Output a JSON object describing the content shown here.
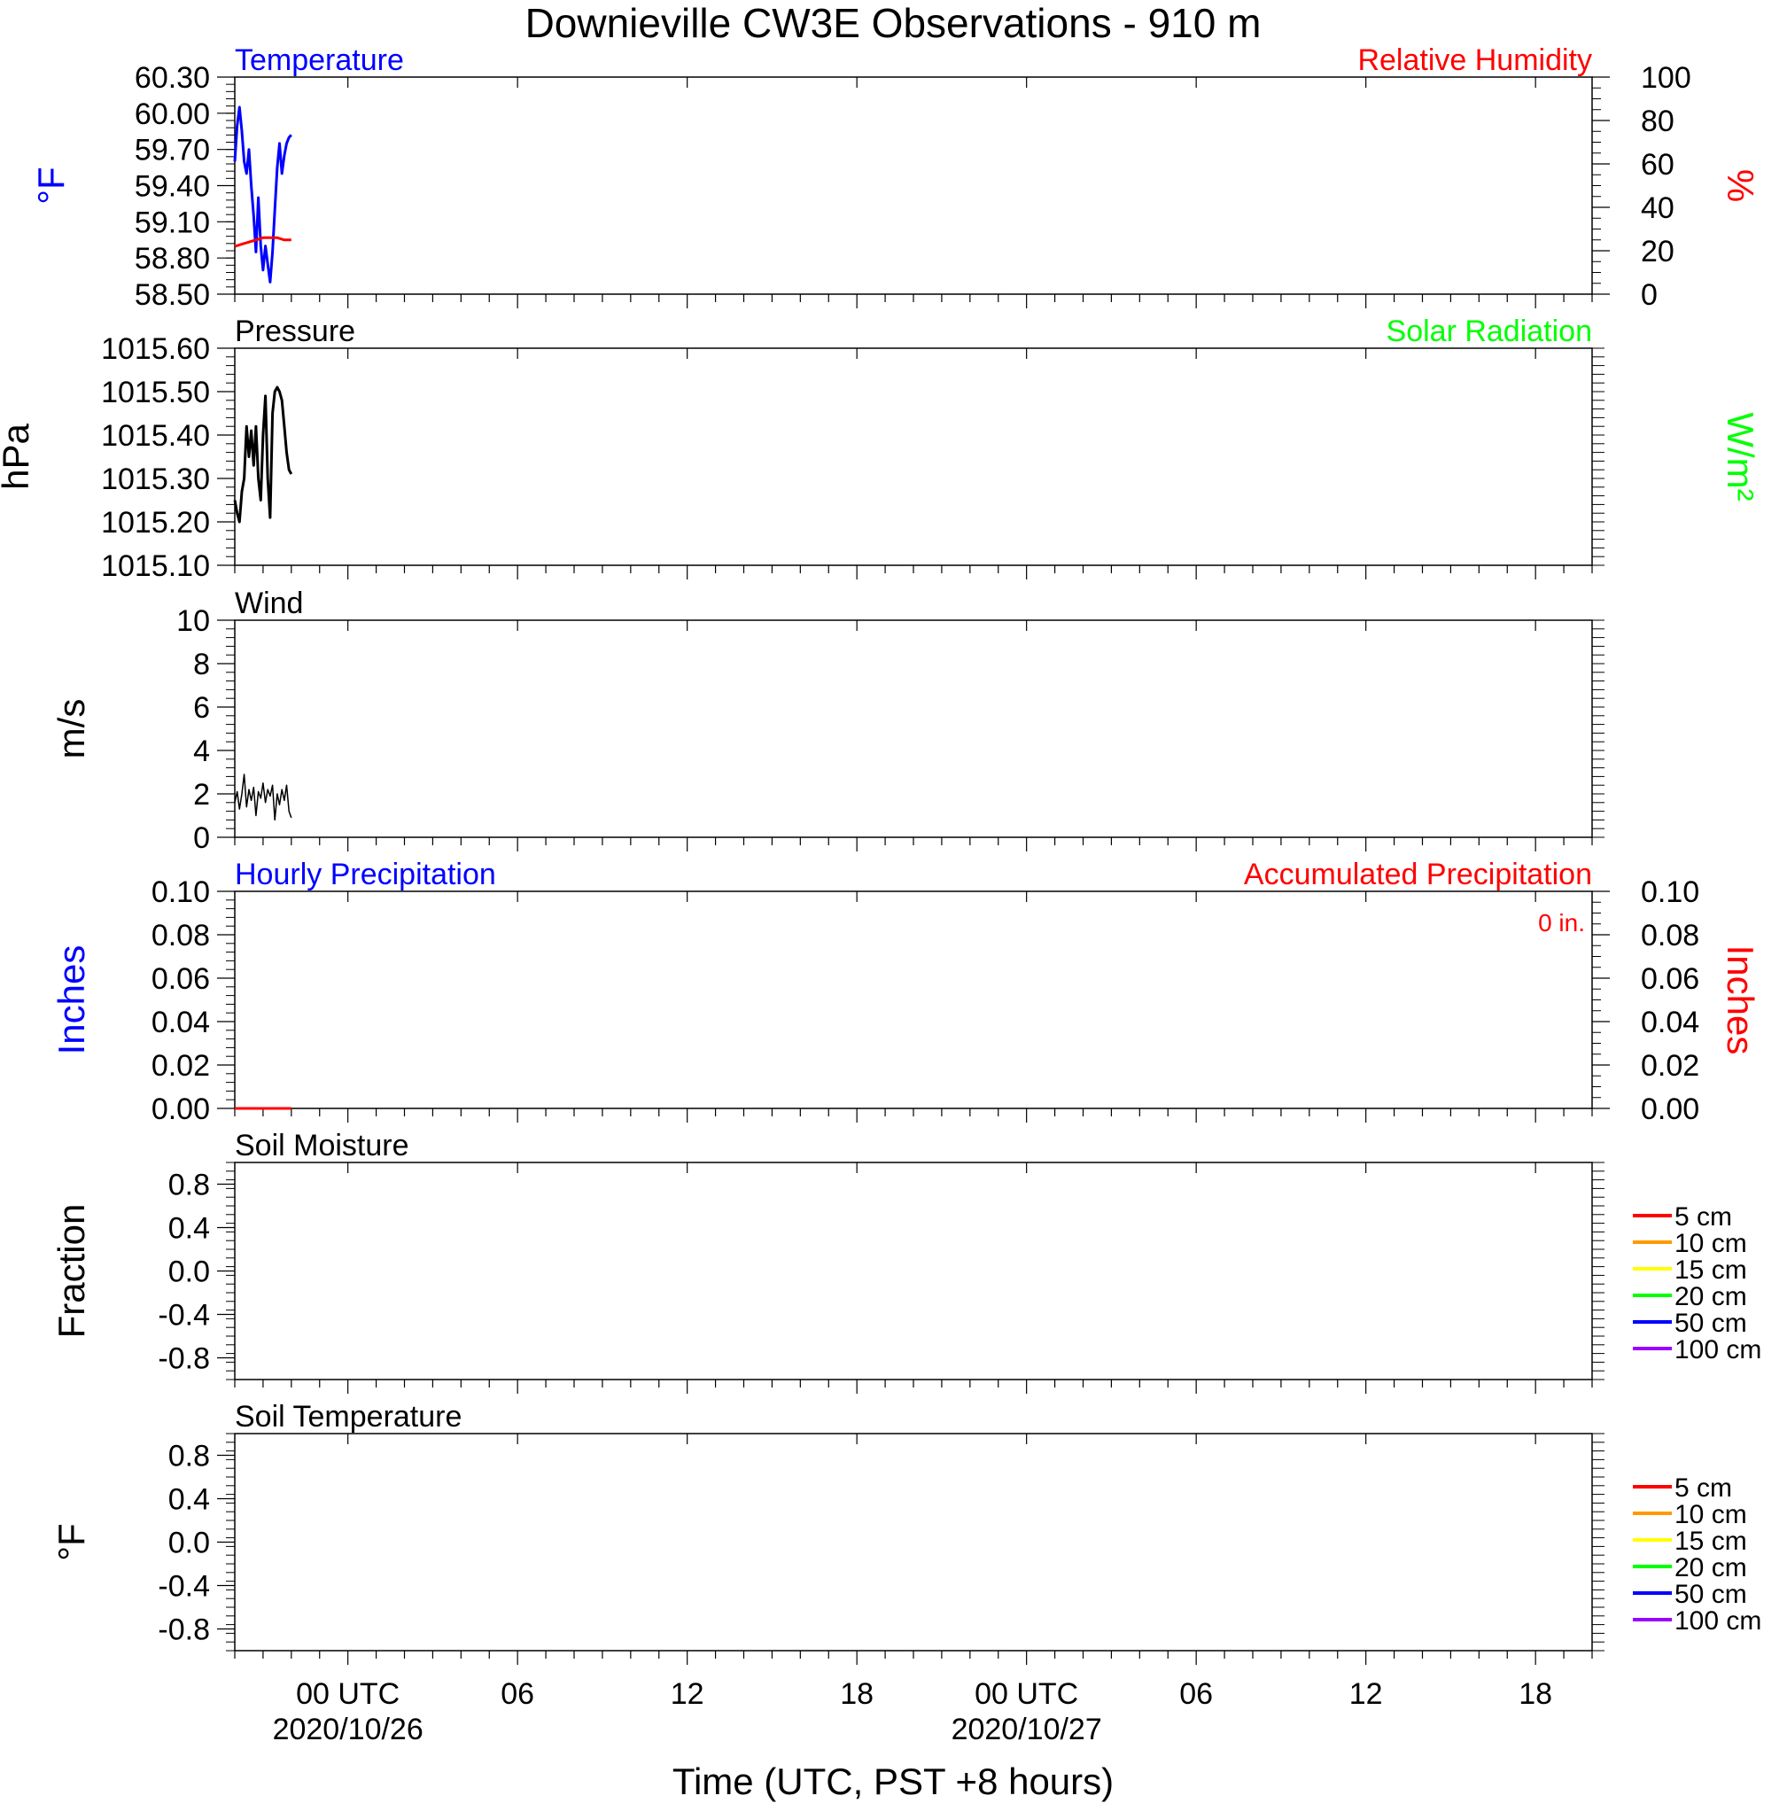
{
  "chart_data": {
    "type": "line",
    "title": "Downieville CW3E Observations - 910 m",
    "xlabel": "Time (UTC, PST +8 hours)",
    "x_range": [
      "2020-10-25T20:00Z",
      "2020-10-27T20:00Z"
    ],
    "x_major_ticks": [
      {
        "t": "2020-10-26T00:00Z",
        "label": "00 UTC",
        "sublabel": "2020/10/26"
      },
      {
        "t": "2020-10-26T06:00Z",
        "label": "06",
        "sublabel": ""
      },
      {
        "t": "2020-10-26T12:00Z",
        "label": "12",
        "sublabel": ""
      },
      {
        "t": "2020-10-26T18:00Z",
        "label": "18",
        "sublabel": ""
      },
      {
        "t": "2020-10-27T00:00Z",
        "label": "00 UTC",
        "sublabel": "2020/10/27"
      },
      {
        "t": "2020-10-27T06:00Z",
        "label": "06",
        "sublabel": ""
      },
      {
        "t": "2020-10-27T12:00Z",
        "label": "12",
        "sublabel": ""
      },
      {
        "t": "2020-10-27T18:00Z",
        "label": "18",
        "sublabel": ""
      }
    ],
    "panels": [
      {
        "id": "temperature",
        "title_left": "Temperature",
        "title_left_color": "#0000ff",
        "title_right": "Relative Humidity",
        "title_right_color": "#ff0000",
        "ylabel_left": "°F",
        "ylabel_left_color": "#0000ff",
        "ylabel_right": "%",
        "ylabel_right_color": "#ff0000",
        "ylim_left": [
          58.5,
          60.3
        ],
        "yticks_left": [
          "58.50",
          "58.80",
          "59.10",
          "59.40",
          "59.70",
          "60.00",
          "60.30"
        ],
        "ylim_right": [
          0,
          100
        ],
        "yticks_right": [
          "0",
          "20",
          "40",
          "60",
          "80",
          "100"
        ],
        "series": [
          {
            "axis": "left",
            "color": "#0000ff",
            "stroke": 3,
            "x": [
              "2020-10-25T20:00Z",
              "2020-10-25T20:05Z",
              "2020-10-25T20:10Z",
              "2020-10-25T20:15Z",
              "2020-10-25T20:20Z",
              "2020-10-25T20:25Z",
              "2020-10-25T20:30Z",
              "2020-10-25T20:35Z",
              "2020-10-25T20:40Z",
              "2020-10-25T20:45Z",
              "2020-10-25T20:50Z",
              "2020-10-25T20:55Z",
              "2020-10-25T21:00Z",
              "2020-10-25T21:05Z",
              "2020-10-25T21:10Z",
              "2020-10-25T21:15Z",
              "2020-10-25T21:20Z",
              "2020-10-25T21:25Z",
              "2020-10-25T21:30Z",
              "2020-10-25T21:35Z",
              "2020-10-25T21:40Z",
              "2020-10-25T21:45Z",
              "2020-10-25T21:50Z",
              "2020-10-25T21:55Z",
              "2020-10-25T22:00Z"
            ],
            "y": [
              59.6,
              59.9,
              60.05,
              59.85,
              59.6,
              59.5,
              59.7,
              59.4,
              59.15,
              58.85,
              59.3,
              58.9,
              58.7,
              58.9,
              58.75,
              58.6,
              58.85,
              59.2,
              59.55,
              59.75,
              59.5,
              59.65,
              59.75,
              59.8,
              59.82
            ]
          },
          {
            "axis": "right",
            "color": "#ff0000",
            "stroke": 3,
            "x": [
              "2020-10-25T20:00Z",
              "2020-10-25T20:15Z",
              "2020-10-25T20:30Z",
              "2020-10-25T20:45Z",
              "2020-10-25T21:00Z",
              "2020-10-25T21:15Z",
              "2020-10-25T21:30Z",
              "2020-10-25T21:45Z",
              "2020-10-25T22:00Z"
            ],
            "y": [
              22,
              23,
              24,
              25,
              26,
              26,
              26,
              25,
              25
            ]
          }
        ]
      },
      {
        "id": "pressure",
        "title_left": "Pressure",
        "title_left_color": "#000000",
        "title_right": "Solar Radiation",
        "title_right_color": "#00ff00",
        "ylabel_left": "hPa",
        "ylabel_left_color": "#000000",
        "ylabel_right": "W/m²",
        "ylabel_right_color": "#00ff00",
        "ylim_left": [
          1015.1,
          1015.6
        ],
        "yticks_left": [
          "1015.10",
          "1015.20",
          "1015.30",
          "1015.40",
          "1015.50",
          "1015.60"
        ],
        "ylim_right": null,
        "yticks_right": [],
        "series": [
          {
            "axis": "left",
            "color": "#000000",
            "stroke": 3,
            "x": [
              "2020-10-25T20:00Z",
              "2020-10-25T20:05Z",
              "2020-10-25T20:10Z",
              "2020-10-25T20:15Z",
              "2020-10-25T20:20Z",
              "2020-10-25T20:25Z",
              "2020-10-25T20:30Z",
              "2020-10-25T20:35Z",
              "2020-10-25T20:40Z",
              "2020-10-25T20:45Z",
              "2020-10-25T20:50Z",
              "2020-10-25T20:55Z",
              "2020-10-25T21:00Z",
              "2020-10-25T21:05Z",
              "2020-10-25T21:10Z",
              "2020-10-25T21:15Z",
              "2020-10-25T21:20Z",
              "2020-10-25T21:25Z",
              "2020-10-25T21:30Z",
              "2020-10-25T21:35Z",
              "2020-10-25T21:40Z",
              "2020-10-25T21:45Z",
              "2020-10-25T21:50Z",
              "2020-10-25T21:55Z",
              "2020-10-25T22:00Z"
            ],
            "y": [
              1015.25,
              1015.22,
              1015.2,
              1015.27,
              1015.3,
              1015.42,
              1015.35,
              1015.41,
              1015.33,
              1015.42,
              1015.3,
              1015.25,
              1015.4,
              1015.49,
              1015.3,
              1015.21,
              1015.45,
              1015.5,
              1015.51,
              1015.5,
              1015.48,
              1015.42,
              1015.36,
              1015.32,
              1015.31
            ]
          }
        ]
      },
      {
        "id": "wind",
        "title_left": "Wind",
        "title_left_color": "#000000",
        "title_right": "",
        "title_right_color": "#000000",
        "ylabel_left": "m/s",
        "ylabel_left_color": "#000000",
        "ylabel_right": "",
        "ylabel_right_color": "#000000",
        "ylim_left": [
          0,
          10
        ],
        "yticks_left": [
          "0",
          "2",
          "4",
          "6",
          "8",
          "10"
        ],
        "ylim_right": null,
        "yticks_right": [],
        "series": [
          {
            "axis": "left",
            "color": "#000000",
            "stroke": 1.5,
            "x": [
              "2020-10-25T20:00Z",
              "2020-10-25T20:05Z",
              "2020-10-25T20:10Z",
              "2020-10-25T20:15Z",
              "2020-10-25T20:20Z",
              "2020-10-25T20:25Z",
              "2020-10-25T20:30Z",
              "2020-10-25T20:35Z",
              "2020-10-25T20:40Z",
              "2020-10-25T20:45Z",
              "2020-10-25T20:50Z",
              "2020-10-25T20:55Z",
              "2020-10-25T21:00Z",
              "2020-10-25T21:05Z",
              "2020-10-25T21:10Z",
              "2020-10-25T21:15Z",
              "2020-10-25T21:20Z",
              "2020-10-25T21:25Z",
              "2020-10-25T21:30Z",
              "2020-10-25T21:35Z",
              "2020-10-25T21:40Z",
              "2020-10-25T21:45Z",
              "2020-10-25T21:50Z",
              "2020-10-25T21:55Z",
              "2020-10-25T22:00Z"
            ],
            "y": [
              1.6,
              2.1,
              1.3,
              2.0,
              2.9,
              1.4,
              2.2,
              1.7,
              2.3,
              1.0,
              2.1,
              1.8,
              2.5,
              1.6,
              2.2,
              1.9,
              2.4,
              0.8,
              2.0,
              1.5,
              2.2,
              1.7,
              2.4,
              1.2,
              0.9
            ]
          }
        ]
      },
      {
        "id": "precipitation",
        "title_left": "Hourly Precipitation",
        "title_left_color": "#0000ff",
        "title_right": "Accumulated Precipitation",
        "title_right_color": "#ff0000",
        "note": "0 in.",
        "note_color": "#ff0000",
        "ylabel_left": "Inches",
        "ylabel_left_color": "#0000ff",
        "ylabel_right": "Inches",
        "ylabel_right_color": "#ff0000",
        "ylim_left": [
          0,
          0.1
        ],
        "yticks_left": [
          "0.00",
          "0.02",
          "0.04",
          "0.06",
          "0.08",
          "0.10"
        ],
        "ylim_right": [
          0,
          0.1
        ],
        "yticks_right": [
          "0.00",
          "0.02",
          "0.04",
          "0.06",
          "0.08",
          "0.10"
        ],
        "series": [
          {
            "axis": "right",
            "color": "#ff0000",
            "stroke": 3,
            "x": [
              "2020-10-25T20:00Z",
              "2020-10-25T22:00Z"
            ],
            "y": [
              0,
              0
            ]
          }
        ]
      },
      {
        "id": "soil-moisture",
        "title_left": "Soil Moisture",
        "title_left_color": "#000000",
        "title_right": "",
        "title_right_color": "#000000",
        "ylabel_left": "Fraction",
        "ylabel_left_color": "#000000",
        "ylabel_right": "",
        "ylabel_right_color": "#000000",
        "ylim_left": [
          -1,
          1
        ],
        "yticks_left": [
          "-0.8",
          "-0.4",
          "0.0",
          "0.4",
          "0.8"
        ],
        "ylim_right": null,
        "yticks_right": [],
        "legend": [
          {
            "label": "5 cm",
            "color": "#ff0000"
          },
          {
            "label": "10 cm",
            "color": "#ff9900"
          },
          {
            "label": "15 cm",
            "color": "#ffff00"
          },
          {
            "label": "20 cm",
            "color": "#00ff00"
          },
          {
            "label": "50 cm",
            "color": "#0000ff"
          },
          {
            "label": "100 cm",
            "color": "#9900ff"
          }
        ],
        "series": []
      },
      {
        "id": "soil-temperature",
        "title_left": "Soil Temperature",
        "title_left_color": "#000000",
        "title_right": "",
        "title_right_color": "#000000",
        "ylabel_left": "°F",
        "ylabel_left_color": "#000000",
        "ylabel_right": "",
        "ylabel_right_color": "#000000",
        "ylim_left": [
          -1,
          1
        ],
        "yticks_left": [
          "-0.8",
          "-0.4",
          "0.0",
          "0.4",
          "0.8"
        ],
        "ylim_right": null,
        "yticks_right": [],
        "legend": [
          {
            "label": "5 cm",
            "color": "#ff0000"
          },
          {
            "label": "10 cm",
            "color": "#ff9900"
          },
          {
            "label": "15 cm",
            "color": "#ffff00"
          },
          {
            "label": "20 cm",
            "color": "#00ff00"
          },
          {
            "label": "50 cm",
            "color": "#0000ff"
          },
          {
            "label": "100 cm",
            "color": "#9900ff"
          }
        ],
        "series": []
      }
    ]
  }
}
